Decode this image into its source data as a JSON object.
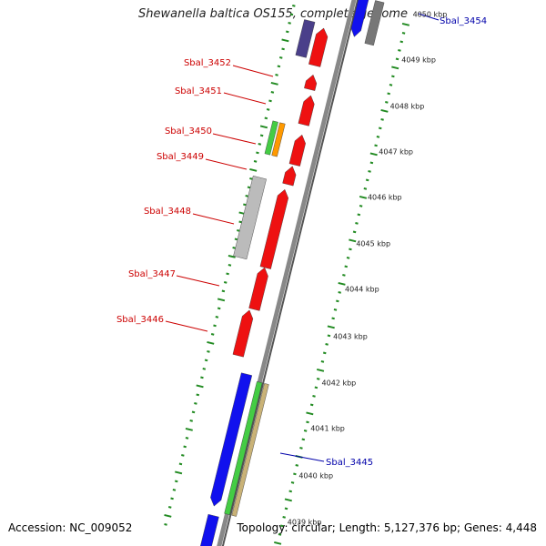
{
  "title": "Shewanella baltica OS155, complete genome",
  "footer": {
    "accession": "Accession: NC_009052",
    "summary": "Topology: circular; Length: 5,127,376 bp; Genes: 4,448"
  },
  "colors": {
    "backbone": "#888888",
    "ticks": "#228b22",
    "gene_red": "#ee1111",
    "gene_blue": "#1111ee",
    "gene_purple": "#4a3f8a",
    "gene_grey": "#bbbbbb",
    "gene_green": "#44cc44",
    "gene_orange": "#ff9900",
    "gene_tan": "#c9b277",
    "label_red": "#cc0000",
    "label_blue": "#0000aa"
  },
  "scale_labels": [
    "4050 kbp",
    "4049 kbp",
    "4048 kbp",
    "4047 kbp",
    "4046 kbp",
    "4045 kbp",
    "4044 kbp",
    "4043 kbp",
    "4042 kbp",
    "4041 kbp",
    "4040 kbp",
    "4039 kbp"
  ],
  "gene_labels": [
    {
      "text": "Sbal_3454",
      "color": "blue"
    },
    {
      "text": "Sbal_3452",
      "color": "red"
    },
    {
      "text": "Sbal_3451",
      "color": "red"
    },
    {
      "text": "Sbal_3450",
      "color": "red"
    },
    {
      "text": "Sbal_3449",
      "color": "red"
    },
    {
      "text": "Sbal_3448",
      "color": "red"
    },
    {
      "text": "Sbal_3447",
      "color": "red"
    },
    {
      "text": "Sbal_3446",
      "color": "red"
    },
    {
      "text": "Sbal_3445",
      "color": "blue"
    }
  ]
}
